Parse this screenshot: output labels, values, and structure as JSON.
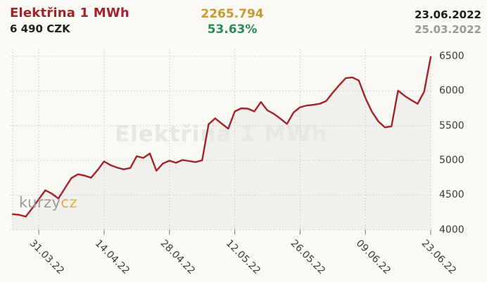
{
  "header": {
    "title": "Elektřina 1 MWh",
    "price": "6 490 CZK",
    "change_value": "2265.794",
    "change_percent": "53.63%",
    "date_to": "23.06.2022",
    "date_from": "25.03.2022"
  },
  "watermark": "Elektřina 1 MWh",
  "logo": {
    "text_main": "kurzy",
    "text_suffix": "cz"
  },
  "colors": {
    "background": "#faf9f4",
    "line": "#a3232b",
    "area_fill": "#f1f0ec",
    "grid": "#c9c8c3",
    "tick": "#777777",
    "title": "#a3232b",
    "price_text": "#222222",
    "change_value": "#c9992e",
    "change_percent": "#2e8a57",
    "date_to": "#1d1d1d",
    "date_from": "#9a9a9a",
    "axis_text": "#3a3a3a",
    "watermark": "#e8e7e3",
    "logo_main": "#9b9b9b",
    "logo_suffix": "#dcb14d"
  },
  "chart_data": {
    "type": "line",
    "title": "Elektřina 1 MWh",
    "ylabel": "CZK",
    "xlabel": "",
    "legend": "none",
    "grid": "dotted",
    "x_start_date": "25.03.2022",
    "x_end_date": "23.06.2022",
    "x_ticks": [
      {
        "label": "31.03.22",
        "index": 4
      },
      {
        "label": "14.04.22",
        "index": 14
      },
      {
        "label": "28.04.22",
        "index": 24
      },
      {
        "label": "12.05.22",
        "index": 34
      },
      {
        "label": "26.05.22",
        "index": 44
      },
      {
        "label": "09.06.22",
        "index": 54
      },
      {
        "label": "23.06.22",
        "index": 64
      }
    ],
    "y_ticks": [
      6500,
      6000,
      5500,
      5000,
      4500,
      4000
    ],
    "ylim": [
      4000,
      6550
    ],
    "series": [
      {
        "name": "Elektřina 1 MWh (CZK)",
        "values": [
          4224,
          4215,
          4190,
          4310,
          4440,
          4570,
          4520,
          4450,
          4600,
          4745,
          4800,
          4780,
          4750,
          4860,
          4985,
          4930,
          4895,
          4870,
          4890,
          5060,
          5035,
          5100,
          4850,
          4955,
          4995,
          4965,
          5005,
          4990,
          4975,
          5000,
          5520,
          5605,
          5530,
          5455,
          5705,
          5750,
          5745,
          5705,
          5840,
          5720,
          5670,
          5600,
          5525,
          5690,
          5765,
          5790,
          5800,
          5815,
          5855,
          5975,
          6085,
          6185,
          6195,
          6150,
          5900,
          5700,
          5560,
          5475,
          5490,
          6005,
          5930,
          5870,
          5815,
          5990,
          6490
        ]
      }
    ]
  }
}
